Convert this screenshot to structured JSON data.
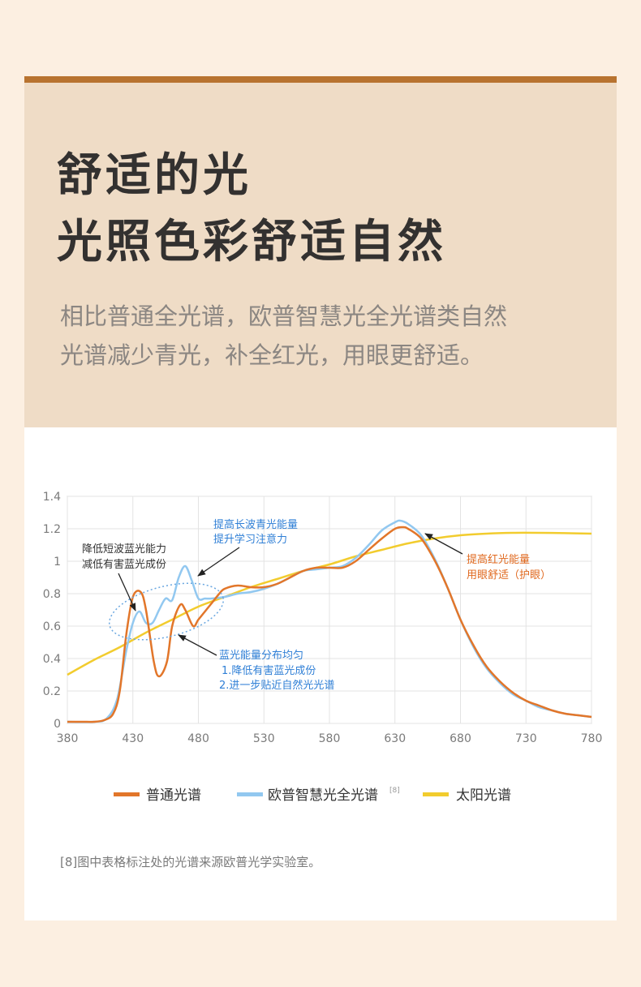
{
  "header": {
    "title_line1": "舒适的光",
    "title_line2": "光照色彩舒适自然",
    "desc_line1": "相比普通全光谱，欧普智慧光全光谱类自然",
    "desc_line2": "光谱减少青光，补全红光，用眼更舒适。"
  },
  "colors": {
    "accent_bar": "#b8732f",
    "header_bg": "#efdcc6",
    "page_bg": "#fcefe1",
    "normal": "#e2762a",
    "opple": "#92c8f0",
    "sun": "#f2cc2e"
  },
  "annotations": {
    "a1_line1": "提高长波青光能量",
    "a1_line2": "提升学习注意力",
    "a2_line1": "降低短波蓝光能力",
    "a2_line2": "减低有害蓝光成份",
    "a3_line1": "提高红光能量",
    "a3_line2": "用眼舒适（护眼）",
    "a4_line1": "蓝光能量分布均匀",
    "a4_line2": "1.降低有害蓝光成份",
    "a4_line3": "2.进一步贴近自然光光谱"
  },
  "legend": {
    "normal": "普通光谱",
    "opple": "欧普智慧光全光谱",
    "opple_sup": "[8]",
    "sun": "太阳光谱"
  },
  "footnote": "[8]图中表格标注处的光谱来源欧普光学实验室。",
  "chart_data": {
    "type": "line",
    "xlim": [
      380,
      780
    ],
    "ylim": [
      0,
      1.4
    ],
    "x_ticks": [
      380,
      430,
      480,
      530,
      580,
      630,
      680,
      730,
      780
    ],
    "y_ticks": [
      "0",
      "0.2",
      "0.4",
      "0.6",
      "0.8",
      "1",
      "1.2",
      "1.4"
    ],
    "grid": true,
    "legend_position": "bottom",
    "series": [
      {
        "name": "普通光谱",
        "color": "#e2762a",
        "x": [
          380,
          395,
          400,
          408,
          415,
          420,
          425,
          430,
          436,
          440,
          446,
          450,
          456,
          460,
          466,
          470,
          476,
          480,
          486,
          490,
          496,
          500,
          510,
          520,
          530,
          540,
          550,
          560,
          570,
          580,
          590,
          600,
          610,
          620,
          630,
          636,
          640,
          650,
          660,
          670,
          680,
          690,
          700,
          710,
          720,
          730,
          740,
          750,
          760,
          770,
          780
        ],
        "y": [
          0.01,
          0.01,
          0.01,
          0.02,
          0.06,
          0.2,
          0.55,
          0.78,
          0.81,
          0.7,
          0.38,
          0.29,
          0.38,
          0.6,
          0.73,
          0.7,
          0.6,
          0.64,
          0.7,
          0.74,
          0.8,
          0.83,
          0.85,
          0.84,
          0.84,
          0.86,
          0.9,
          0.94,
          0.96,
          0.96,
          0.96,
          1.0,
          1.07,
          1.14,
          1.2,
          1.21,
          1.2,
          1.14,
          1.01,
          0.84,
          0.64,
          0.48,
          0.35,
          0.26,
          0.19,
          0.14,
          0.11,
          0.08,
          0.06,
          0.05,
          0.04
        ]
      },
      {
        "name": "欧普智慧光全光谱",
        "color": "#92c8f0",
        "x": [
          380,
          400,
          410,
          418,
          425,
          430,
          435,
          440,
          445,
          450,
          455,
          460,
          465,
          470,
          475,
          480,
          485,
          490,
          500,
          510,
          520,
          530,
          540,
          550,
          560,
          570,
          580,
          590,
          600,
          610,
          620,
          630,
          634,
          640,
          650,
          660,
          670,
          680,
          690,
          700,
          710,
          720,
          730,
          740,
          750,
          760,
          770,
          780
        ],
        "y": [
          0.01,
          0.01,
          0.03,
          0.15,
          0.45,
          0.62,
          0.69,
          0.62,
          0.62,
          0.7,
          0.77,
          0.76,
          0.9,
          0.97,
          0.88,
          0.77,
          0.77,
          0.77,
          0.78,
          0.8,
          0.81,
          0.83,
          0.86,
          0.9,
          0.94,
          0.95,
          0.96,
          0.97,
          1.02,
          1.1,
          1.19,
          1.24,
          1.25,
          1.23,
          1.16,
          1.02,
          0.84,
          0.64,
          0.47,
          0.34,
          0.25,
          0.18,
          0.14,
          0.1,
          0.08,
          0.06,
          0.05,
          0.04
        ]
      },
      {
        "name": "太阳光谱",
        "color": "#f2cc2e",
        "x": [
          380,
          400,
          420,
          440,
          460,
          480,
          500,
          520,
          540,
          560,
          580,
          600,
          620,
          640,
          660,
          680,
          700,
          720,
          740,
          760,
          780
        ],
        "y": [
          0.3,
          0.39,
          0.47,
          0.56,
          0.64,
          0.72,
          0.78,
          0.84,
          0.89,
          0.94,
          0.98,
          1.03,
          1.07,
          1.11,
          1.14,
          1.16,
          1.17,
          1.175,
          1.175,
          1.173,
          1.17
        ]
      }
    ]
  }
}
